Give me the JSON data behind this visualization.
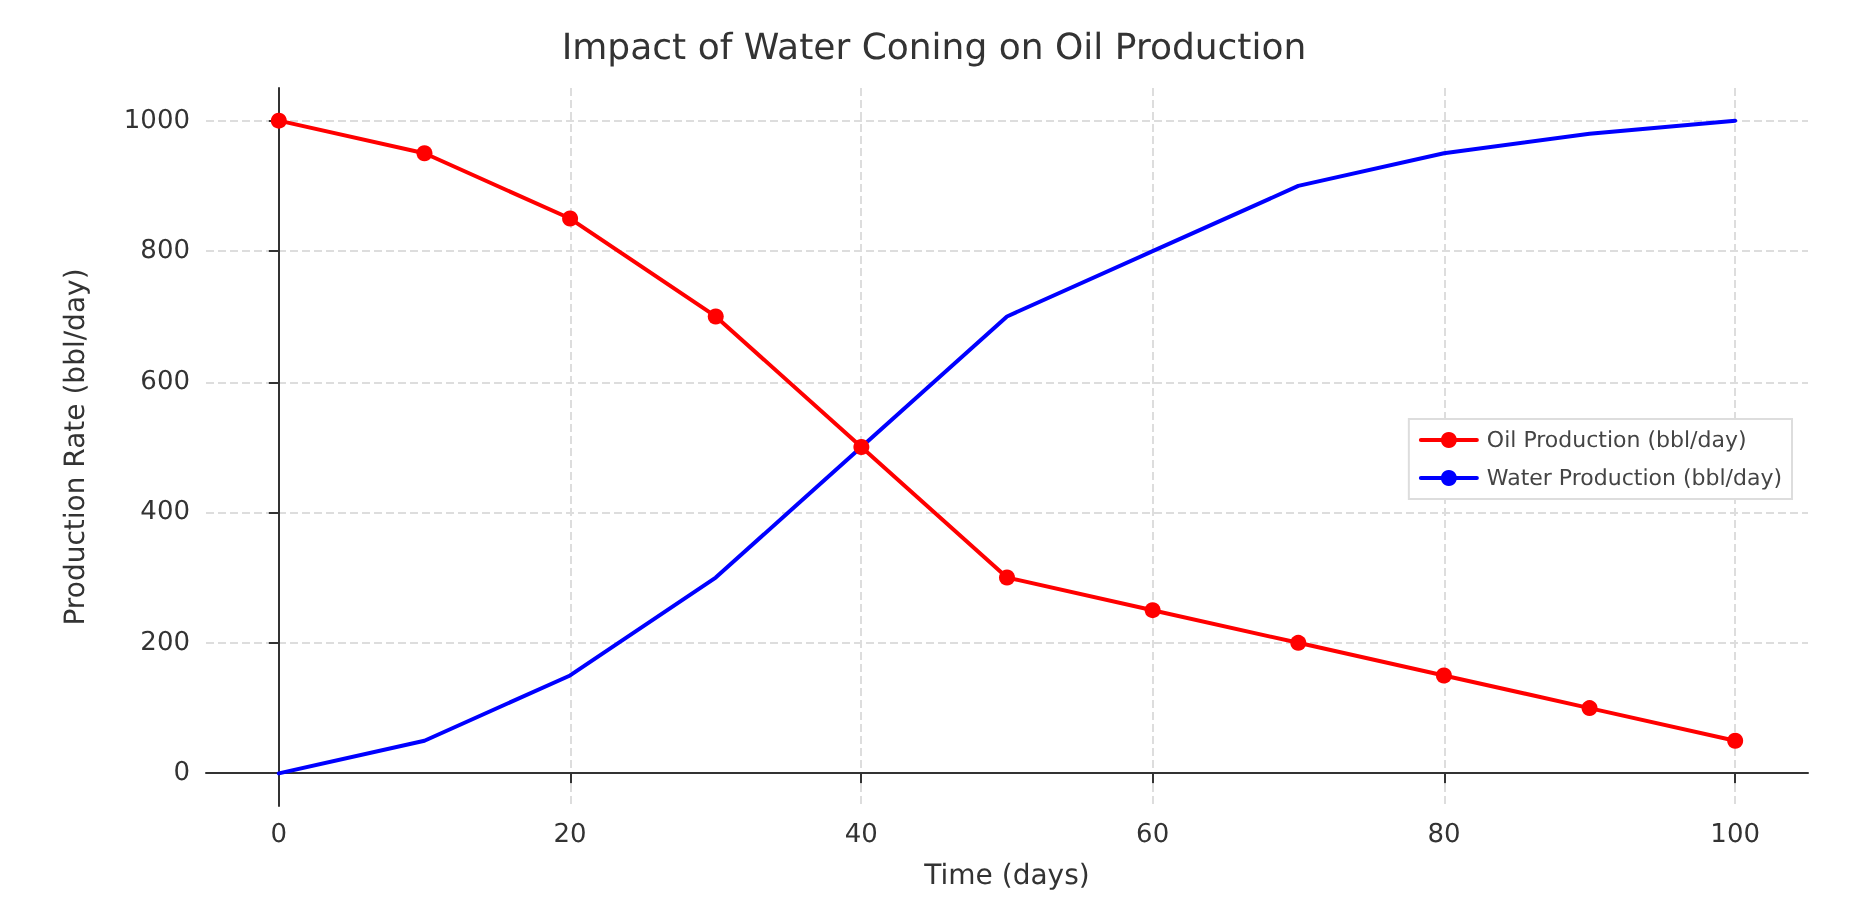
{
  "chart_data": {
    "type": "line",
    "title": "Impact of Water Coning on Oil Production",
    "xlabel": "Time (days)",
    "ylabel": "Production Rate (bbl/day)",
    "x": [
      0,
      10,
      20,
      30,
      40,
      50,
      60,
      70,
      80,
      90,
      100
    ],
    "series": [
      {
        "name": "Oil Production (bbl/day)",
        "color": "#ff0000",
        "marker": "circle",
        "values": [
          1000,
          950,
          850,
          700,
          500,
          300,
          250,
          200,
          150,
          100,
          50
        ]
      },
      {
        "name": "Water Production (bbl/day)",
        "color": "#0000ff",
        "marker": "none",
        "values": [
          0,
          50,
          150,
          300,
          500,
          700,
          800,
          900,
          950,
          980,
          1000
        ]
      }
    ],
    "xlim": [
      -5,
      105
    ],
    "xticks": [
      0,
      20,
      40,
      60,
      80,
      100
    ],
    "ylim": [
      -50,
      1050
    ],
    "yticks": [
      0,
      200,
      400,
      600,
      800,
      1000
    ],
    "grid": true,
    "legend": "right",
    "line_style": "solid"
  }
}
